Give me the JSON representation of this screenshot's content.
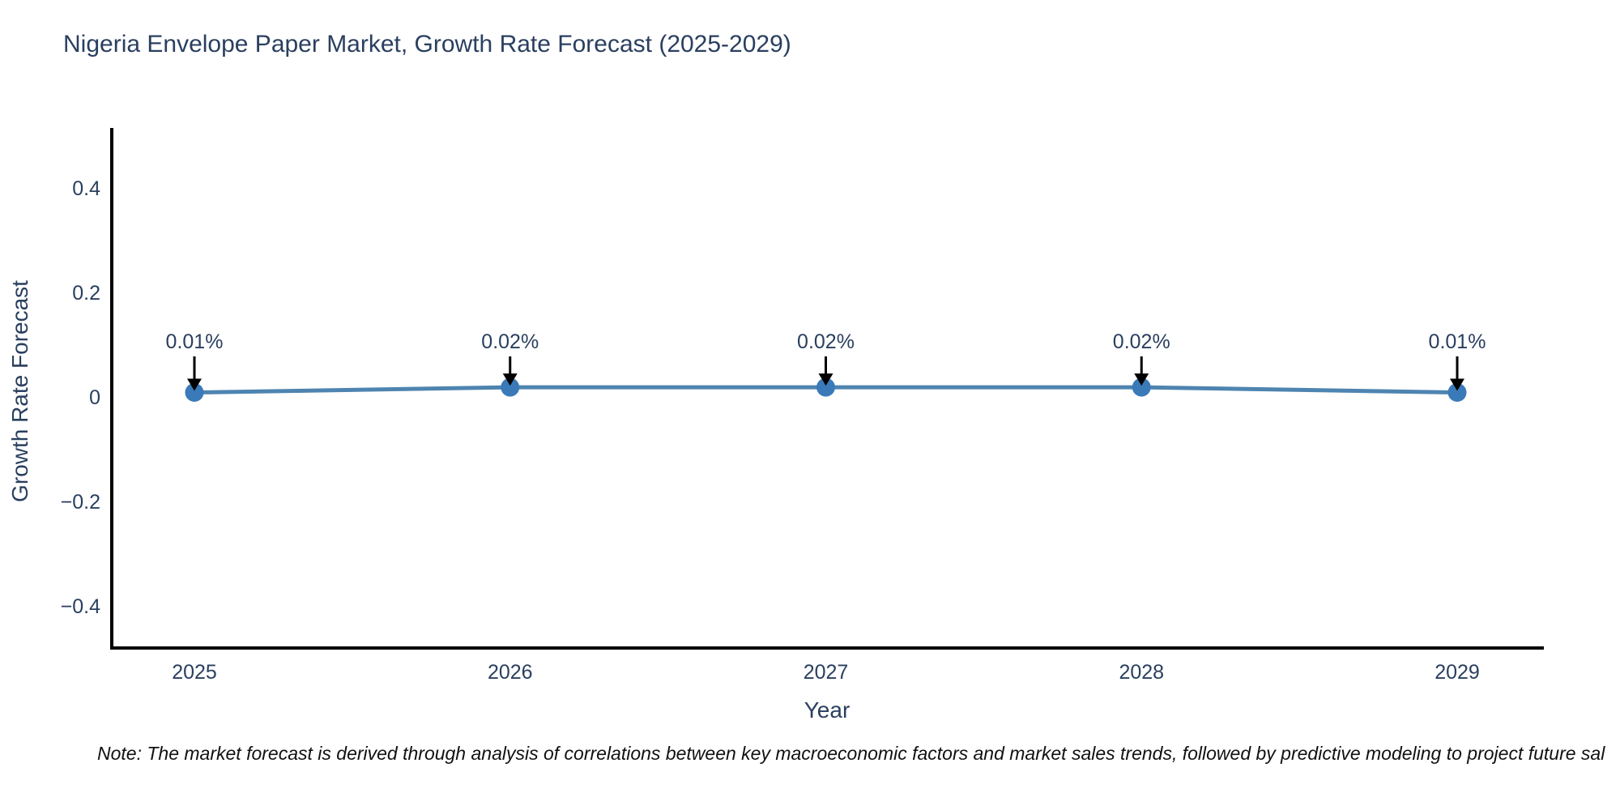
{
  "chart_data": {
    "type": "line",
    "title": "Nigeria Envelope Paper Market, Growth Rate Forecast (2025-2029)",
    "xlabel": "Year",
    "ylabel": "Growth Rate Forecast",
    "categories": [
      "2025",
      "2026",
      "2027",
      "2028",
      "2029"
    ],
    "values": [
      0.01,
      0.02,
      0.02,
      0.02,
      0.01
    ],
    "point_labels": [
      "0.01%",
      "0.02%",
      "0.02%",
      "0.02%",
      "0.01%"
    ],
    "yticks": [
      {
        "value": 0.4,
        "label": "0.4"
      },
      {
        "value": 0.2,
        "label": "0.2"
      },
      {
        "value": 0,
        "label": "0"
      },
      {
        "value": -0.2,
        "label": "−0.2"
      },
      {
        "value": -0.4,
        "label": "−0.4"
      }
    ],
    "ylim": [
      -0.48,
      0.51
    ],
    "grid": false,
    "legend": "none",
    "colors": {
      "line": "#4e84b0",
      "marker": "#3a7ab8",
      "arrow": "#000000",
      "axis": "#000000",
      "text": "#2a3f5f"
    }
  },
  "note": {
    "text": "Note: The market forecast is derived through analysis of correlations between key macroeconomic factors and market sales trends, followed by predictive modeling to project future sal"
  }
}
